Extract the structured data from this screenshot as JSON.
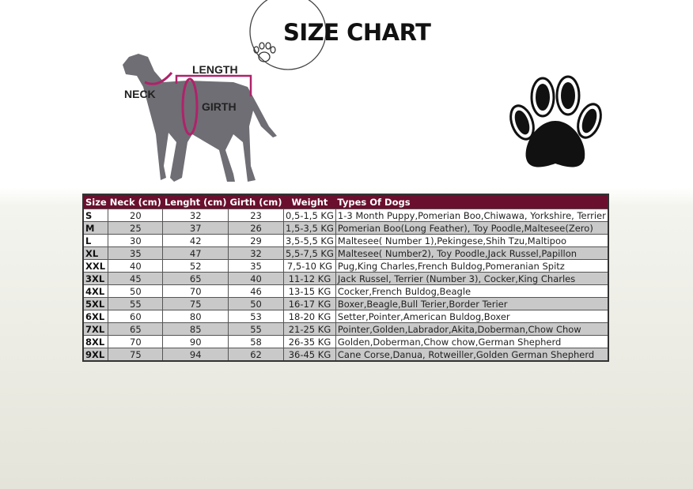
{
  "header": {
    "title": "SIZE CHART"
  },
  "diagram": {
    "labels": {
      "length": "LENGTH",
      "neck": "NECK",
      "girth": "GIRTH"
    },
    "accent": "#b0226a"
  },
  "table": {
    "header_color": "#6b0f2e",
    "columns": [
      "Size",
      "Neck (cm)",
      "Lenght (cm)",
      "Girth (cm)",
      "Weight",
      "Types Of Dogs"
    ],
    "rows": [
      [
        "S",
        "20",
        "32",
        "23",
        "0,5-1,5 KG",
        "1-3 Month Puppy,Pomerian Boo,Chiwawa, Yorkshire, Terrier"
      ],
      [
        "M",
        "25",
        "37",
        "26",
        "1,5-3,5 KG",
        "Pomerian Boo(Long Feather), Toy Poodle,Maltesee(Zero)"
      ],
      [
        "L",
        "30",
        "42",
        "29",
        "3,5-5,5 KG",
        "Maltesee( Number 1),Pekingese,Shih Tzu,Maltipoo"
      ],
      [
        "XL",
        "35",
        "47",
        "32",
        "5,5-7,5 KG",
        "Maltesee( Number2), Toy Poodle,Jack Russel,Papillon"
      ],
      [
        "XXL",
        "40",
        "52",
        "35",
        "7,5-10 KG",
        "Pug,King Charles,French Buldog,Pomeranian Spitz"
      ],
      [
        "3XL",
        "45",
        "65",
        "40",
        "11-12 KG",
        "Jack Russel, Terrier (Number 3), Cocker,King Charles"
      ],
      [
        "4XL",
        "50",
        "70",
        "46",
        "13-15 KG",
        "Cocker,French Buldog,Beagle"
      ],
      [
        "5XL",
        "55",
        "75",
        "50",
        "16-17 KG",
        "Boxer,Beagle,Bull Terier,Border Terier"
      ],
      [
        "6XL",
        "60",
        "80",
        "53",
        "18-20 KG",
        "Setter,Pointer,American Buldog,Boxer"
      ],
      [
        "7XL",
        "65",
        "85",
        "55",
        "21-25 KG",
        "Pointer,Golden,Labrador,Akita,Doberman,Chow Chow"
      ],
      [
        "8XL",
        "70",
        "90",
        "58",
        "26-35 KG",
        "Golden,Doberman,Chow chow,German Shepherd"
      ],
      [
        "9XL",
        "75",
        "94",
        "62",
        "36-45 KG",
        "Cane Corse,Danua, Rotweiller,Golden German Shepherd"
      ]
    ]
  }
}
